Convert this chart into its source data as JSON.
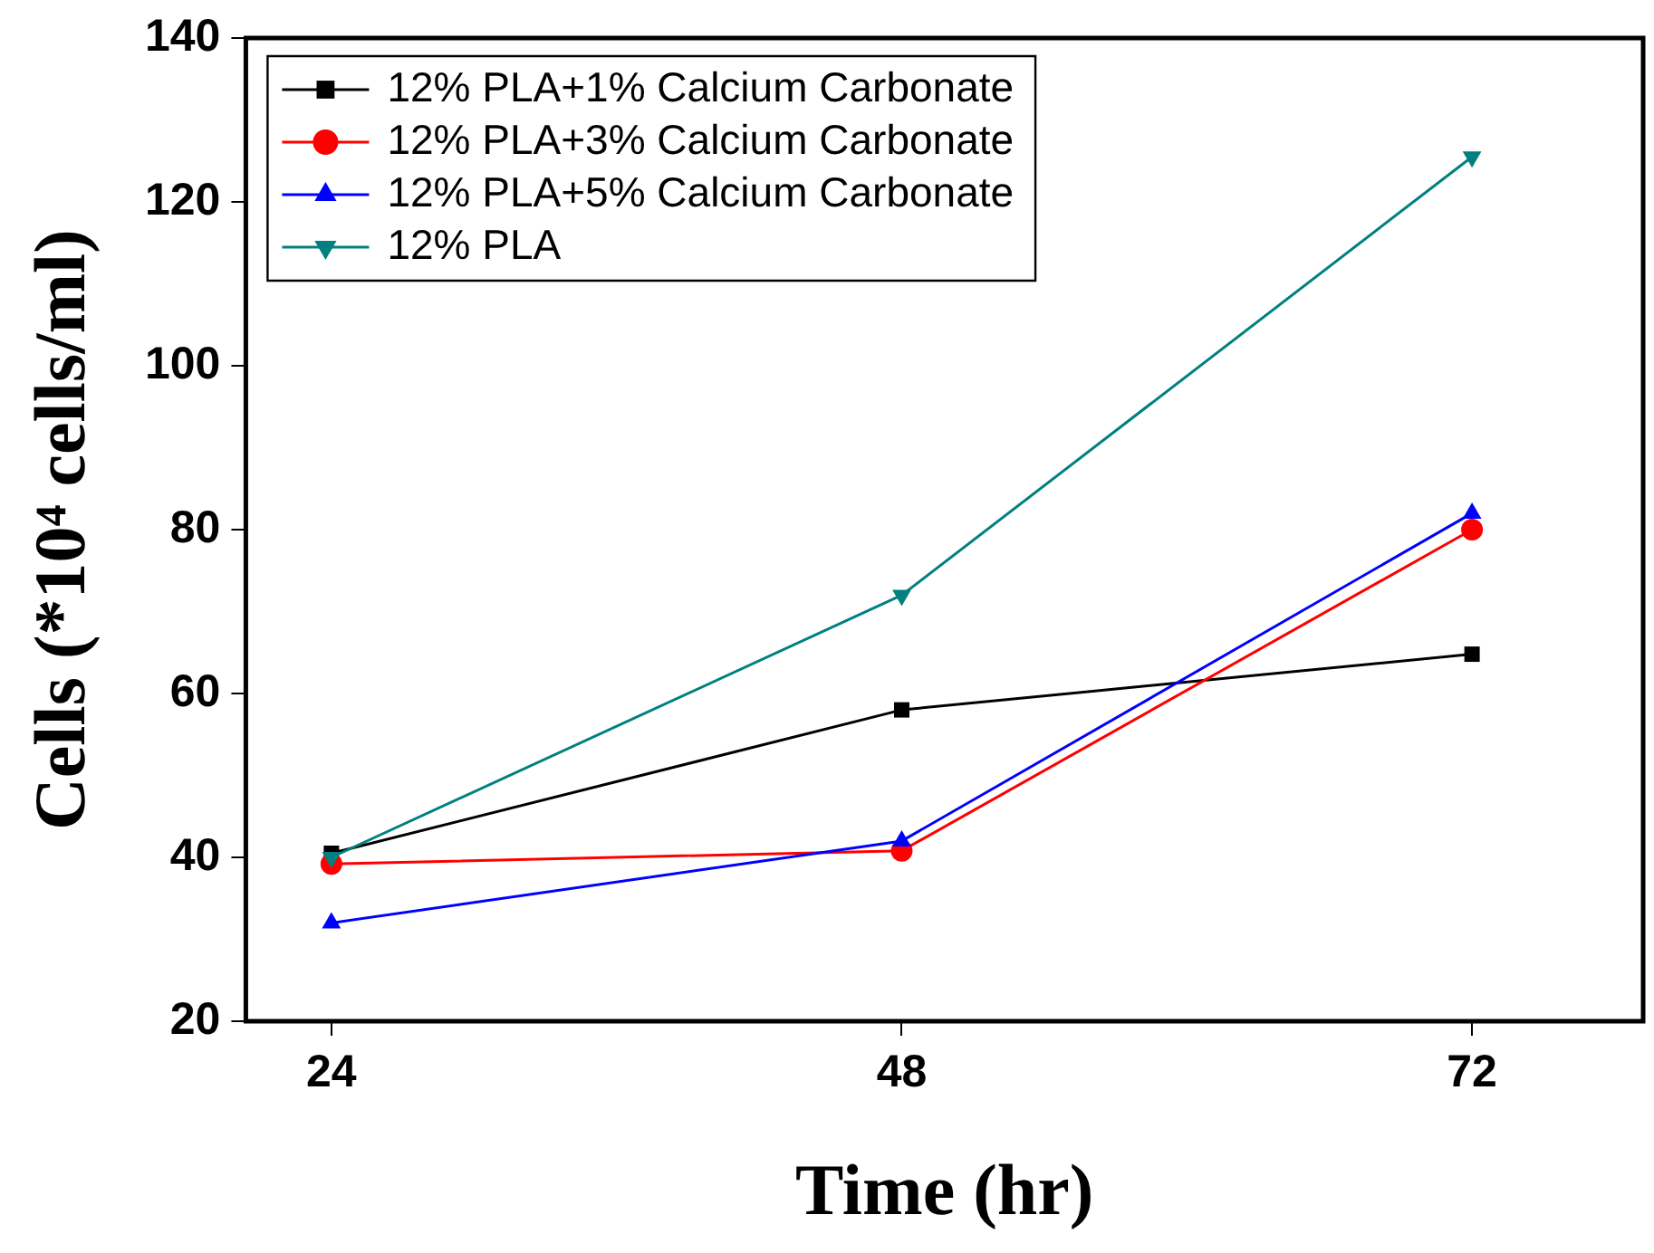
{
  "chart_data": {
    "type": "line",
    "xlabel": "Time (hr)",
    "ylabel": "Cells (*10⁴ cells/ml)",
    "x": [
      24,
      48,
      72
    ],
    "xlim": [
      20.4,
      79.2
    ],
    "xticks": [
      24,
      48,
      72
    ],
    "ylim": [
      20,
      140
    ],
    "yticks": [
      20,
      40,
      60,
      80,
      100,
      120,
      140
    ],
    "grid": false,
    "legend": "top left",
    "line_style": "solid",
    "series": [
      {
        "name": "12% PLA+1% Calcium Carbonate",
        "color": "#000000",
        "marker": "square",
        "values": [
          40.5,
          58,
          64.8
        ]
      },
      {
        "name": "12% PLA+3% Calcium Carbonate",
        "color": "#ff0000",
        "marker": "circle",
        "values": [
          39.2,
          40.8,
          80
        ]
      },
      {
        "name": "12% PLA+5% Calcium Carbonate",
        "color": "#0000ff",
        "marker": "triangle",
        "values": [
          32,
          42,
          82
        ]
      },
      {
        "name": "12% PLA",
        "color": "#008080",
        "marker": "triangle-down",
        "values": [
          40,
          72,
          125.5
        ]
      }
    ]
  }
}
